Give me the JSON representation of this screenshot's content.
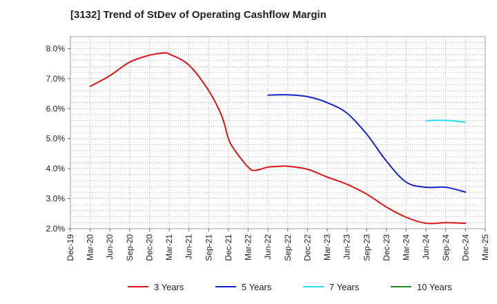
{
  "chart_data": {
    "type": "line",
    "title": "[3132]  Trend of StDev of Operating Cashflow Margin",
    "xlabel": "",
    "ylabel": "",
    "x_ticks": [
      "Dec-19",
      "Mar-20",
      "Jun-20",
      "Sep-20",
      "Dec-20",
      "Mar-21",
      "Jun-21",
      "Sep-21",
      "Dec-21",
      "Mar-22",
      "Jun-22",
      "Sep-22",
      "Dec-22",
      "Mar-23",
      "Jun-23",
      "Sep-23",
      "Dec-23",
      "Mar-24",
      "Jun-24",
      "Sep-24",
      "Dec-24",
      "Mar-25"
    ],
    "y_ticks": [
      "2.0%",
      "3.0%",
      "4.0%",
      "5.0%",
      "6.0%",
      "7.0%",
      "8.0%"
    ],
    "ylim": [
      2.0,
      8.4
    ],
    "grid": true,
    "legend_position": "bottom",
    "series": [
      {
        "name": "3 Years",
        "color": "#dd1111",
        "x": [
          "Mar-20",
          "Jun-20",
          "Sep-20",
          "Dec-20",
          "Feb-21",
          "Mar-21",
          "Jun-21",
          "Sep-21",
          "Nov-21",
          "Dec-21",
          "Jan-22",
          "Mar-22",
          "Apr-22",
          "Jun-22",
          "Aug-22",
          "Sep-22",
          "Dec-22",
          "Mar-23",
          "Jun-23",
          "Sep-23",
          "Dec-23",
          "Mar-24",
          "Jun-24",
          "Sep-24",
          "Dec-24"
        ],
        "values": [
          6.74,
          7.1,
          7.55,
          7.78,
          7.85,
          7.82,
          7.45,
          6.6,
          5.75,
          5.0,
          4.6,
          4.05,
          3.94,
          4.05,
          4.08,
          4.08,
          3.98,
          3.72,
          3.48,
          3.15,
          2.72,
          2.38,
          2.18,
          2.2,
          2.18
        ]
      },
      {
        "name": "5 Years",
        "color": "#1122cc",
        "x": [
          "Jun-22",
          "Sep-22",
          "Dec-22",
          "Mar-23",
          "Jun-23",
          "Sep-23",
          "Dec-23",
          "Mar-24",
          "Jun-24",
          "Sep-24",
          "Dec-24"
        ],
        "values": [
          6.45,
          6.46,
          6.4,
          6.2,
          5.85,
          5.15,
          4.25,
          3.55,
          3.38,
          3.38,
          3.22
        ]
      },
      {
        "name": "7 Years",
        "color": "#22ddee",
        "x": [
          "Jun-24",
          "Sep-24",
          "Dec-24"
        ],
        "values": [
          5.6,
          5.61,
          5.55
        ]
      },
      {
        "name": "10 Years",
        "color": "#228822",
        "x": [],
        "values": []
      }
    ]
  }
}
